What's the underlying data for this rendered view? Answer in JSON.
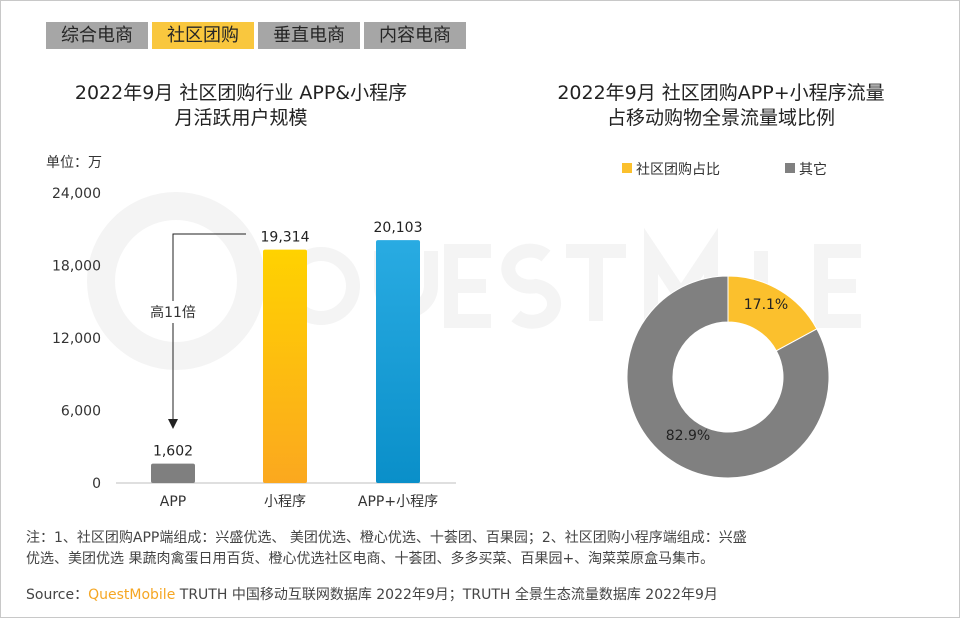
{
  "tabs": [
    {
      "label": "综合电商"
    },
    {
      "label": "社区团购",
      "active": true
    },
    {
      "label": "垂直电商"
    },
    {
      "label": "内容电商"
    }
  ],
  "watermark": "QUESTMOBILE",
  "colors": {
    "bar_app": "#7f7f7f",
    "bar_mini": "#fbb11b",
    "bar_both": "#1ea0d8",
    "pie_share": "#fbc02d",
    "pie_other": "#808080",
    "tab_active": "#f9c73e",
    "tab": "#a6a6a6",
    "brand": "#f5a623"
  },
  "chart_data": [
    {
      "type": "bar",
      "title_line1": "2022年9月 社区团购行业 APP&小程序",
      "title_line2": "月活跃用户规模",
      "unit": "单位：万",
      "categories": [
        "APP",
        "小程序",
        "APP+小程序"
      ],
      "values": [
        1602,
        19314,
        20103
      ],
      "data_labels": [
        "1,602",
        "19,314",
        "20,103"
      ],
      "yticks": [
        "0",
        "6,000",
        "12,000",
        "18,000",
        "24,000"
      ],
      "ylim": [
        0,
        24000
      ],
      "annotation": "高11倍",
      "grid": false
    },
    {
      "type": "pie",
      "donut": true,
      "title_line1": "2022年9月 社区团购APP+小程序流量",
      "title_line2": "占移动购物全景流量域比例",
      "legend": [
        "社区团购占比",
        "其它"
      ],
      "legend_position": "top",
      "values": [
        17.1,
        82.9
      ],
      "labels": [
        "17.1%",
        "82.9%"
      ]
    }
  ],
  "note_line1": "注：1、社区团购APP端组成：兴盛优选、 美团优选、橙心优选、十荟团、百果园；2、社区团购小程序端组成：兴盛",
  "note_line2": "优选、美团优选 果蔬肉禽蛋日用百货、橙心优选社区电商、十荟团、多多买菜、百果园+、淘菜菜原盒马集市。",
  "source_label": "Source：",
  "source_brand": "QuestMobile",
  "source_text": " TRUTH 中国移动互联网数据库 2022年9月；TRUTH 全景生态流量数据库 2022年9月"
}
